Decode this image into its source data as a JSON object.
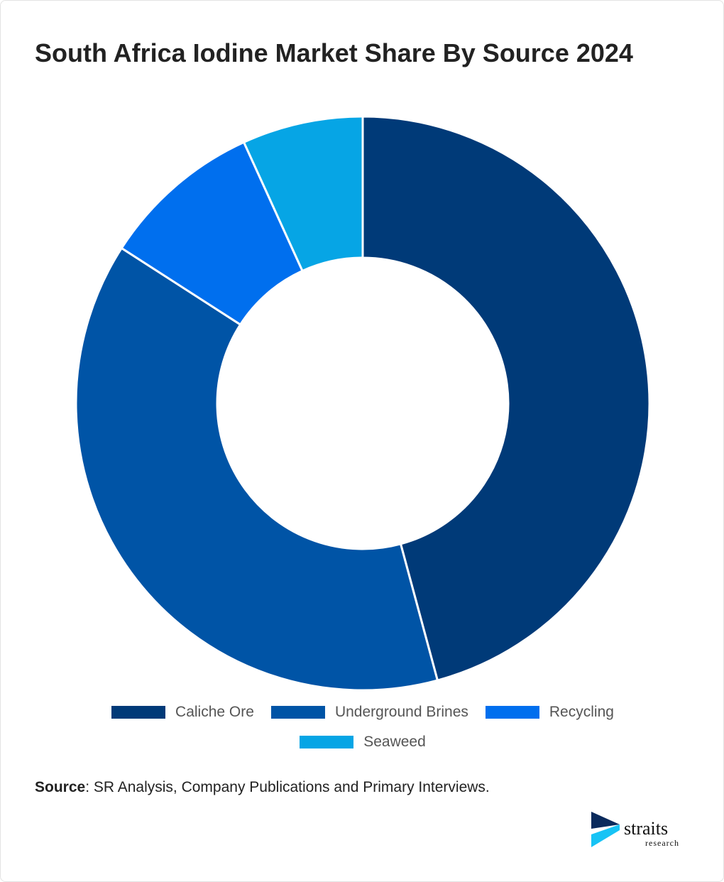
{
  "chart_data": {
    "type": "pie",
    "title": "South Africa Iodine Market Share By Source 2024",
    "categories": [
      "Caliche Ore",
      "Underground Brines",
      "Recycling",
      "Seaweed"
    ],
    "values": [
      45.8,
      38.3,
      9.1,
      6.8
    ],
    "colors": [
      "#003a78",
      "#0054a6",
      "#006fee",
      "#06a5e5"
    ],
    "hole": true
  },
  "source": {
    "label": "Source",
    "text": ": SR Analysis, Company Publications and Primary Interviews."
  },
  "logo": {
    "name": "straits",
    "sub": "research"
  }
}
